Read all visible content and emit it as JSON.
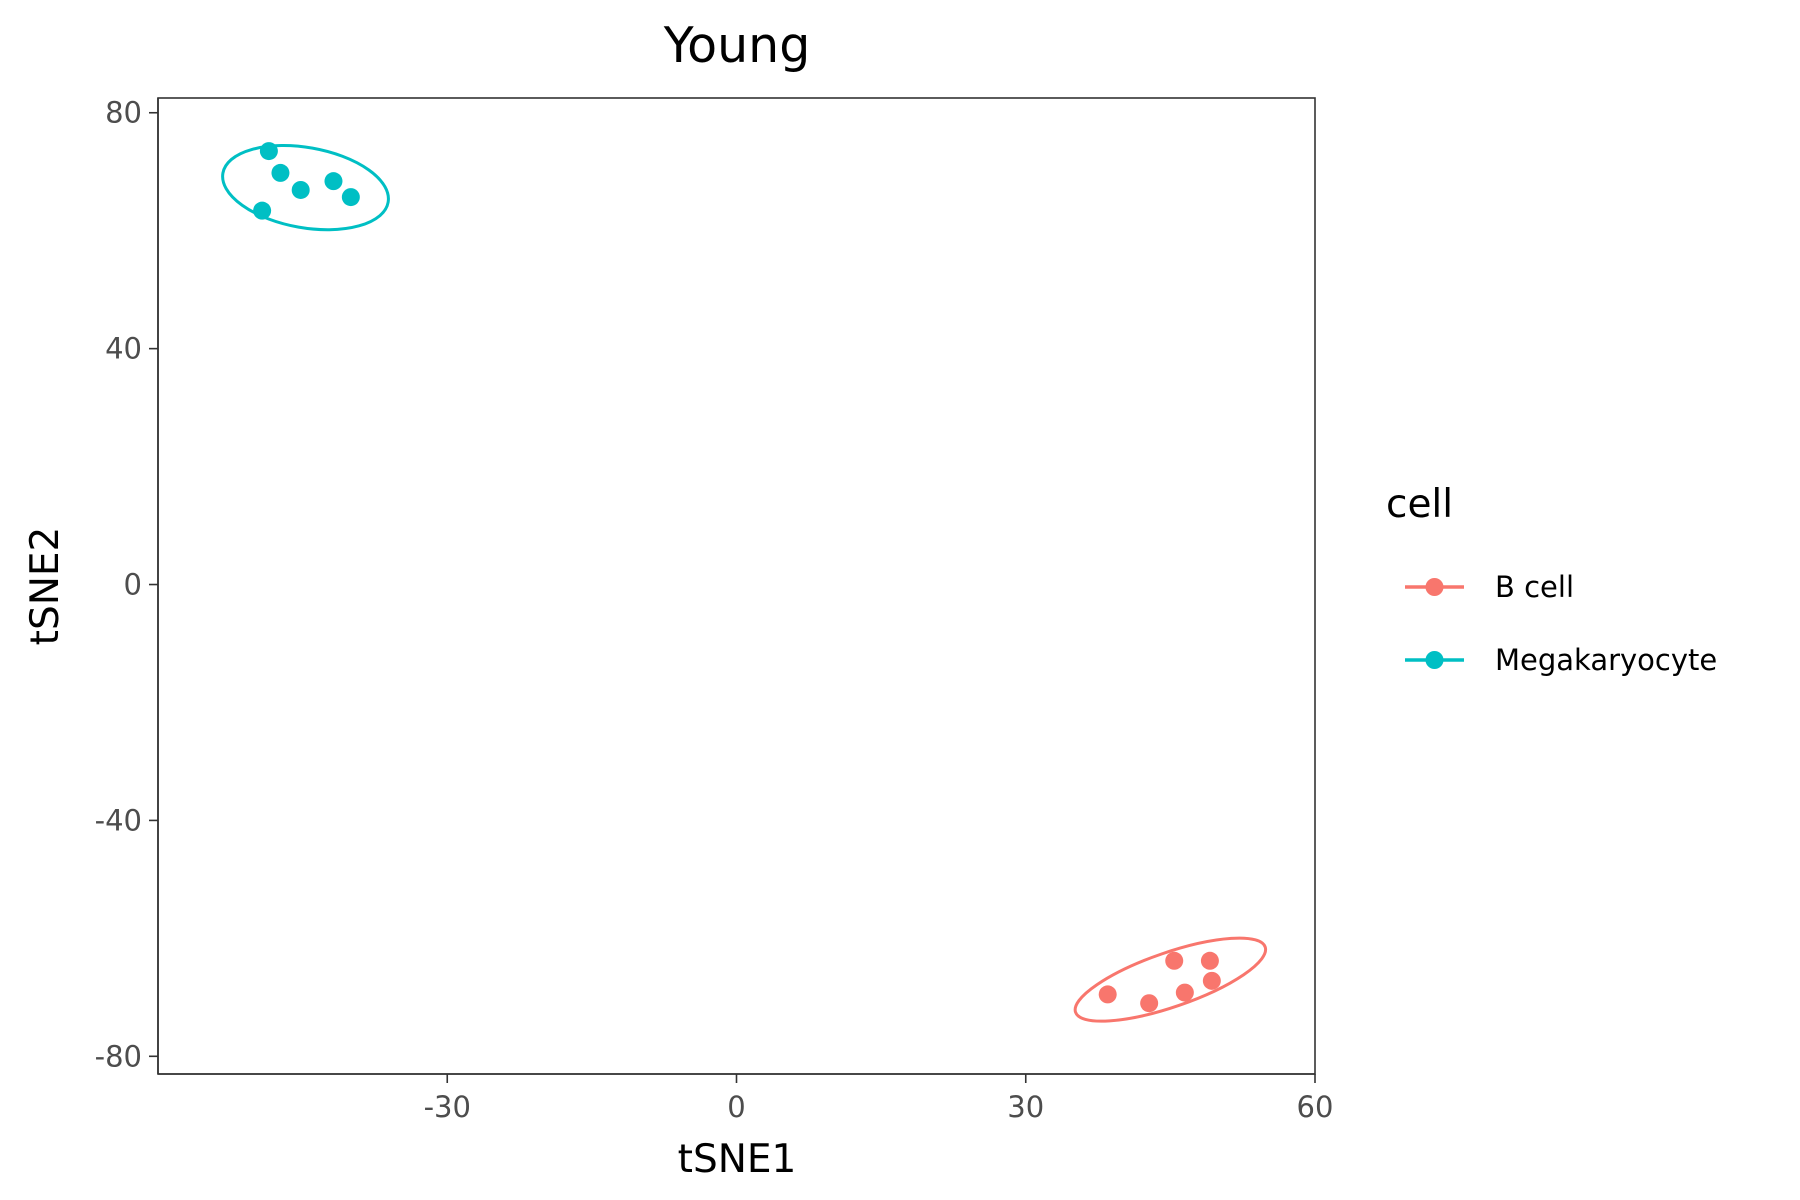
{
  "chart_data": {
    "type": "scatter",
    "title": "Young",
    "xlabel": "tSNE1",
    "ylabel": "tSNE2",
    "xlim": [
      -60,
      60
    ],
    "ylim": [
      -83,
      82.5
    ],
    "xticks": [
      -30,
      0,
      30,
      60
    ],
    "yticks": [
      80,
      40,
      0,
      -40,
      -80
    ],
    "grid": false,
    "legend": {
      "title": "cell",
      "placement": "right"
    },
    "series": [
      {
        "name": "B cell",
        "color": "#F8766D",
        "points": [
          [
            38.5,
            -69.5
          ],
          [
            42.8,
            -71.0
          ],
          [
            46.5,
            -69.2
          ],
          [
            45.4,
            -63.8
          ],
          [
            49.1,
            -63.8
          ],
          [
            49.3,
            -67.2
          ]
        ],
        "ellipse": {
          "center": [
            45.0,
            -67.0
          ],
          "rx_data": 10.4,
          "ry_data": 4.6,
          "angle_deg": -19
        }
      },
      {
        "name": "Megakaryocyte",
        "color": "#00BFC4",
        "points": [
          [
            -48.5,
            73.5
          ],
          [
            -47.3,
            69.8
          ],
          [
            -45.2,
            66.9
          ],
          [
            -41.8,
            68.4
          ],
          [
            -40.0,
            65.7
          ],
          [
            -49.2,
            63.4
          ]
        ],
        "ellipse": {
          "center": [
            -44.7,
            67.3
          ],
          "rx_data": 8.7,
          "ry_data": 6.8,
          "angle_deg": 10
        }
      }
    ]
  }
}
